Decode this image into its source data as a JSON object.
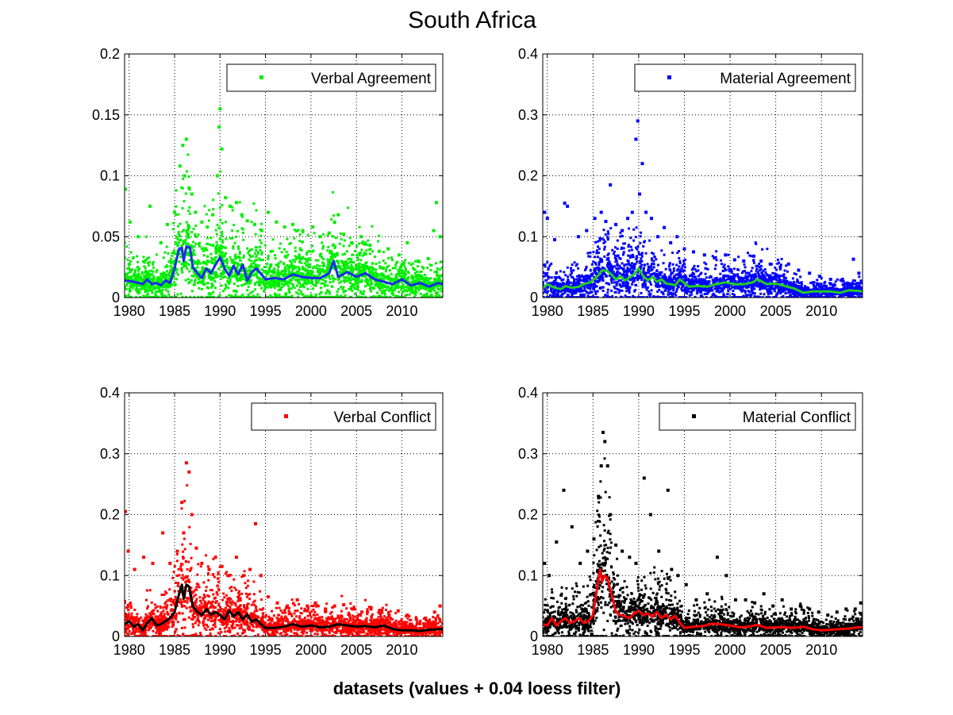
{
  "figure": {
    "title": "South Africa",
    "xlabel": "datasets (values + 0.04 loess filter)"
  },
  "chart_data": [
    {
      "type": "scatter",
      "panel": "top-left",
      "legend": "Verbal Agreement",
      "legend_placement": "top-right",
      "grid": true,
      "xlim": [
        1979.5,
        2014.5
      ],
      "ylim": [
        0,
        0.2
      ],
      "xticks": [
        "1980",
        "1985",
        "1990",
        "1995",
        "2000",
        "2005",
        "2010"
      ],
      "yticks": [
        "0",
        "0.05",
        "0.1",
        "0.15",
        "0.2"
      ],
      "colors": {
        "points": "#00ee00",
        "trend": "#1a2ee6"
      },
      "series": [
        {
          "name": "Verbal Agreement",
          "kind": "points",
          "x": [
            1979.6,
            1980.1,
            1981.0,
            1982.3,
            1983.5,
            1984.2,
            1985.0,
            1985.6,
            1985.9,
            1986.1,
            1986.3,
            1986.6,
            1986.9,
            1987.3,
            1988.0,
            1988.6,
            1989.2,
            1989.7,
            1989.9,
            1990.0,
            1990.2,
            1990.6,
            1991.1,
            1991.8,
            1992.4,
            1993.0,
            1993.8,
            1994.6,
            1995.3,
            1996.2,
            1997.1,
            1998.0,
            1999.1,
            2000.2,
            2001.0,
            2002.0,
            2002.6,
            2003.0,
            2003.6,
            2004.5,
            2005.5,
            2006.5,
            2007.5,
            2008.5,
            2009.7,
            2010.6,
            2011.8,
            2012.9,
            2013.5,
            2013.8,
            2014.2
          ],
          "y": [
            0.089,
            0.062,
            0.05,
            0.075,
            0.045,
            0.06,
            0.07,
            0.108,
            0.125,
            0.1,
            0.13,
            0.09,
            0.085,
            0.07,
            0.062,
            0.058,
            0.068,
            0.1,
            0.14,
            0.155,
            0.122,
            0.082,
            0.075,
            0.078,
            0.068,
            0.063,
            0.06,
            0.055,
            0.07,
            0.062,
            0.058,
            0.06,
            0.055,
            0.058,
            0.05,
            0.053,
            0.062,
            0.068,
            0.052,
            0.045,
            0.05,
            0.043,
            0.038,
            0.04,
            0.035,
            0.045,
            0.03,
            0.032,
            0.055,
            0.078,
            0.05
          ]
        },
        {
          "name": "loess trend",
          "kind": "line",
          "x": [
            1979.5,
            1980.5,
            1981.5,
            1982.0,
            1982.5,
            1983.0,
            1983.5,
            1984.0,
            1984.5,
            1985.0,
            1985.5,
            1985.8,
            1986.0,
            1986.3,
            1986.7,
            1987.0,
            1987.5,
            1988.0,
            1988.5,
            1989.0,
            1989.5,
            1990.0,
            1990.5,
            1991.0,
            1991.5,
            1992.0,
            1992.5,
            1993.0,
            1993.5,
            1994.0,
            1995.0,
            1996.0,
            1997.0,
            1998.0,
            1999.0,
            2000.0,
            2001.0,
            2002.0,
            2002.5,
            2003.0,
            2004.0,
            2005.0,
            2006.0,
            2007.0,
            2008.0,
            2009.0,
            2010.0,
            2011.0,
            2012.0,
            2013.0,
            2014.0,
            2014.5
          ],
          "y": [
            0.014,
            0.013,
            0.011,
            0.015,
            0.011,
            0.012,
            0.01,
            0.014,
            0.012,
            0.024,
            0.04,
            0.041,
            0.03,
            0.042,
            0.041,
            0.025,
            0.02,
            0.016,
            0.024,
            0.02,
            0.027,
            0.033,
            0.024,
            0.018,
            0.026,
            0.019,
            0.027,
            0.014,
            0.021,
            0.024,
            0.015,
            0.016,
            0.015,
            0.019,
            0.017,
            0.016,
            0.016,
            0.02,
            0.03,
            0.017,
            0.021,
            0.017,
            0.02,
            0.015,
            0.013,
            0.011,
            0.015,
            0.01,
            0.012,
            0.009,
            0.012,
            0.011
          ]
        }
      ]
    },
    {
      "type": "scatter",
      "panel": "top-right",
      "legend": "Material Agreement",
      "legend_placement": "top-right",
      "grid": true,
      "xlim": [
        1979.5,
        2014.5
      ],
      "ylim": [
        0,
        0.4
      ],
      "xticks": [
        "1980",
        "1985",
        "1990",
        "1995",
        "2000",
        "2005",
        "2010"
      ],
      "yticks": [
        "0",
        "0.1",
        "0.2",
        "0.3",
        "0.4"
      ],
      "colors": {
        "points": "#0000ff",
        "trend": "#22cc22"
      },
      "series": [
        {
          "name": "Material Agreement",
          "kind": "points",
          "x": [
            1979.7,
            1980.0,
            1980.8,
            1981.9,
            1982.2,
            1983.4,
            1984.3,
            1985.2,
            1985.9,
            1986.4,
            1986.9,
            1987.5,
            1988.2,
            1988.8,
            1989.3,
            1989.7,
            1989.9,
            1990.1,
            1990.4,
            1990.8,
            1991.4,
            1992.1,
            1992.8,
            1993.5,
            1994.2,
            1995.0,
            1996.0,
            1997.2,
            1998.3,
            1999.5,
            2000.5,
            2001.5,
            2002.6,
            2003.4,
            2004.4,
            2005.5,
            2006.4,
            2007.5,
            2008.7,
            2009.8,
            2011.0,
            2012.3,
            2013.5,
            2014.1
          ],
          "y": [
            0.14,
            0.13,
            0.095,
            0.155,
            0.15,
            0.1,
            0.11,
            0.13,
            0.14,
            0.125,
            0.185,
            0.12,
            0.11,
            0.13,
            0.14,
            0.26,
            0.29,
            0.17,
            0.22,
            0.14,
            0.13,
            0.1,
            0.115,
            0.09,
            0.1,
            0.08,
            0.075,
            0.07,
            0.065,
            0.07,
            0.062,
            0.06,
            0.068,
            0.06,
            0.055,
            0.05,
            0.055,
            0.045,
            0.04,
            0.035,
            0.03,
            0.03,
            0.063,
            0.04
          ]
        },
        {
          "name": "loess trend",
          "kind": "line",
          "x": [
            1979.5,
            1980.0,
            1980.8,
            1981.5,
            1982.0,
            1982.7,
            1983.5,
            1984.0,
            1984.7,
            1985.5,
            1986.0,
            1986.5,
            1987.0,
            1987.5,
            1988.0,
            1988.5,
            1989.0,
            1989.5,
            1990.0,
            1990.5,
            1991.0,
            1991.5,
            1992.0,
            1992.5,
            1993.0,
            1993.5,
            1994.0,
            1994.5,
            1995.5,
            1996.5,
            1997.5,
            1998.5,
            1999.5,
            2000.5,
            2001.5,
            2002.5,
            2003.0,
            2004.0,
            2005.0,
            2006.0,
            2007.0,
            2008.0,
            2009.0,
            2010.0,
            2011.0,
            2012.0,
            2013.0,
            2014.0,
            2014.5
          ],
          "y": [
            0.015,
            0.022,
            0.016,
            0.014,
            0.019,
            0.016,
            0.018,
            0.022,
            0.025,
            0.035,
            0.045,
            0.044,
            0.038,
            0.03,
            0.035,
            0.028,
            0.033,
            0.038,
            0.048,
            0.035,
            0.028,
            0.034,
            0.026,
            0.03,
            0.023,
            0.022,
            0.02,
            0.03,
            0.018,
            0.019,
            0.018,
            0.022,
            0.025,
            0.022,
            0.022,
            0.025,
            0.03,
            0.022,
            0.023,
            0.019,
            0.015,
            0.008,
            0.01,
            0.01,
            0.01,
            0.008,
            0.012,
            0.011,
            0.01
          ]
        }
      ]
    },
    {
      "type": "scatter",
      "panel": "bottom-left",
      "legend": "Verbal Conflict",
      "legend_placement": "top-right",
      "grid": true,
      "xlim": [
        1979.5,
        2014.5
      ],
      "ylim": [
        0,
        0.4
      ],
      "xticks": [
        "1980",
        "1985",
        "1990",
        "1995",
        "2000",
        "2005",
        "2010"
      ],
      "yticks": [
        "0",
        "0.1",
        "0.2",
        "0.3",
        "0.4"
      ],
      "colors": {
        "points": "#ff0000",
        "trend": "#000000"
      },
      "series": [
        {
          "name": "Verbal Conflict",
          "kind": "points",
          "x": [
            1979.6,
            1979.9,
            1980.6,
            1981.6,
            1982.6,
            1983.7,
            1984.5,
            1985.3,
            1985.8,
            1986.0,
            1986.3,
            1986.6,
            1986.9,
            1987.4,
            1988.0,
            1988.8,
            1989.5,
            1990.2,
            1991.0,
            1991.8,
            1992.6,
            1993.3,
            1993.9,
            1994.5,
            1995.3,
            1996.3,
            1997.4,
            1998.5,
            1999.6,
            2000.5,
            2001.6,
            2002.6,
            2003.6,
            2004.6,
            2005.6,
            2006.6,
            2007.6,
            2008.6,
            2009.6,
            2010.6,
            2011.6,
            2012.6,
            2013.6,
            2014.2
          ],
          "y": [
            0.205,
            0.14,
            0.11,
            0.13,
            0.12,
            0.17,
            0.12,
            0.14,
            0.22,
            0.17,
            0.285,
            0.27,
            0.2,
            0.145,
            0.12,
            0.11,
            0.13,
            0.115,
            0.1,
            0.13,
            0.1,
            0.11,
            0.185,
            0.1,
            0.065,
            0.055,
            0.05,
            0.06,
            0.05,
            0.055,
            0.045,
            0.05,
            0.052,
            0.045,
            0.04,
            0.045,
            0.038,
            0.035,
            0.042,
            0.035,
            0.028,
            0.03,
            0.04,
            0.05
          ]
        },
        {
          "name": "loess trend",
          "kind": "line",
          "x": [
            1979.5,
            1980.0,
            1980.5,
            1981.0,
            1981.5,
            1982.0,
            1982.5,
            1983.0,
            1983.5,
            1984.0,
            1984.5,
            1985.0,
            1985.5,
            1985.8,
            1986.0,
            1986.3,
            1986.6,
            1987.0,
            1987.5,
            1988.0,
            1988.5,
            1989.0,
            1989.5,
            1990.0,
            1990.5,
            1991.0,
            1991.5,
            1992.0,
            1992.5,
            1993.0,
            1993.5,
            1994.0,
            1994.5,
            1995.0,
            1996.0,
            1997.0,
            1998.0,
            1999.0,
            2000.0,
            2001.0,
            2002.0,
            2003.0,
            2004.0,
            2005.0,
            2006.0,
            2007.0,
            2008.0,
            2009.0,
            2010.0,
            2011.0,
            2012.0,
            2013.0,
            2014.0,
            2014.5
          ],
          "y": [
            0.02,
            0.025,
            0.016,
            0.02,
            0.01,
            0.022,
            0.03,
            0.018,
            0.02,
            0.025,
            0.03,
            0.04,
            0.07,
            0.085,
            0.062,
            0.085,
            0.082,
            0.05,
            0.04,
            0.035,
            0.045,
            0.036,
            0.04,
            0.035,
            0.028,
            0.042,
            0.033,
            0.04,
            0.028,
            0.036,
            0.024,
            0.028,
            0.02,
            0.014,
            0.014,
            0.016,
            0.02,
            0.016,
            0.018,
            0.015,
            0.016,
            0.02,
            0.018,
            0.016,
            0.017,
            0.015,
            0.018,
            0.012,
            0.01,
            0.01,
            0.009,
            0.011,
            0.012,
            0.012
          ]
        }
      ]
    },
    {
      "type": "scatter",
      "panel": "bottom-right",
      "legend": "Material Conflict",
      "legend_placement": "top-right",
      "grid": true,
      "xlim": [
        1979.5,
        2014.5
      ],
      "ylim": [
        0,
        0.4
      ],
      "xticks": [
        "1980",
        "1985",
        "1990",
        "1995",
        "2000",
        "2005",
        "2010"
      ],
      "yticks": [
        "0",
        "0.1",
        "0.2",
        "0.3",
        "0.4"
      ],
      "colors": {
        "points": "#000000",
        "trend": "#ff0000"
      },
      "series": [
        {
          "name": "Material Conflict",
          "kind": "points",
          "x": [
            1979.7,
            1980.2,
            1981.0,
            1981.8,
            1982.7,
            1983.6,
            1984.4,
            1985.1,
            1985.6,
            1985.9,
            1986.1,
            1986.3,
            1986.6,
            1986.9,
            1987.5,
            1988.2,
            1989.0,
            1989.7,
            1990.6,
            1991.3,
            1992.2,
            1993.2,
            1993.6,
            1994.3,
            1995.2,
            1996.3,
            1997.5,
            1998.6,
            1999.6,
            2000.6,
            2001.7,
            2002.7,
            2003.7,
            2004.7,
            2005.7,
            2006.7,
            2007.7,
            2008.7,
            2009.7,
            2010.7,
            2011.7,
            2012.7,
            2013.7,
            2014.3
          ],
          "y": [
            0.12,
            0.1,
            0.155,
            0.24,
            0.18,
            0.12,
            0.14,
            0.16,
            0.23,
            0.28,
            0.335,
            0.32,
            0.28,
            0.2,
            0.15,
            0.14,
            0.13,
            0.12,
            0.26,
            0.2,
            0.14,
            0.24,
            0.11,
            0.1,
            0.085,
            0.06,
            0.07,
            0.13,
            0.1,
            0.06,
            0.06,
            0.055,
            0.07,
            0.05,
            0.06,
            0.045,
            0.05,
            0.045,
            0.04,
            0.035,
            0.04,
            0.045,
            0.045,
            0.055
          ]
        },
        {
          "name": "loess trend",
          "kind": "line",
          "x": [
            1979.5,
            1980.0,
            1980.5,
            1981.0,
            1981.5,
            1982.0,
            1982.5,
            1983.0,
            1983.5,
            1984.0,
            1984.5,
            1985.0,
            1985.5,
            1985.8,
            1986.0,
            1986.3,
            1986.6,
            1987.0,
            1987.5,
            1988.0,
            1988.5,
            1989.0,
            1989.5,
            1990.0,
            1990.5,
            1991.0,
            1991.5,
            1992.0,
            1992.5,
            1993.0,
            1993.5,
            1994.0,
            1994.5,
            1995.0,
            1996.0,
            1997.0,
            1998.0,
            1999.0,
            2000.0,
            2001.0,
            2002.0,
            2003.0,
            2004.0,
            2005.0,
            2006.0,
            2007.0,
            2008.0,
            2009.0,
            2010.0,
            2011.0,
            2012.0,
            2013.0,
            2014.0,
            2014.5
          ],
          "y": [
            0.02,
            0.018,
            0.03,
            0.018,
            0.025,
            0.03,
            0.022,
            0.025,
            0.03,
            0.022,
            0.025,
            0.035,
            0.085,
            0.11,
            0.09,
            0.1,
            0.095,
            0.07,
            0.04,
            0.035,
            0.033,
            0.03,
            0.038,
            0.042,
            0.035,
            0.038,
            0.032,
            0.04,
            0.03,
            0.036,
            0.028,
            0.034,
            0.022,
            0.014,
            0.016,
            0.017,
            0.021,
            0.02,
            0.018,
            0.015,
            0.016,
            0.019,
            0.014,
            0.015,
            0.015,
            0.014,
            0.016,
            0.012,
            0.01,
            0.011,
            0.012,
            0.013,
            0.015,
            0.015
          ]
        }
      ]
    }
  ]
}
